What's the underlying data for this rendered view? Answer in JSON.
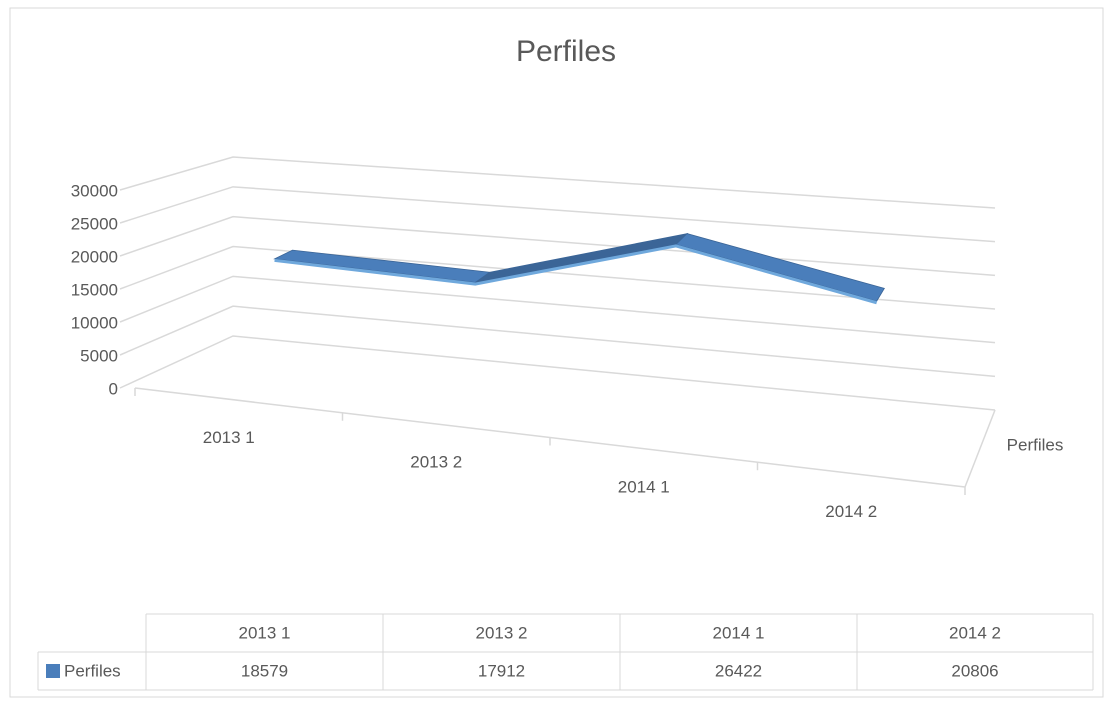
{
  "chart_data": {
    "type": "line3d",
    "title": "Perfiles",
    "categories": [
      "2013 1",
      "2013 2",
      "2014 1",
      "2014 2"
    ],
    "series": [
      {
        "name": "Perfiles",
        "color": "#4a7ebb",
        "values": [
          18579,
          17912,
          26422,
          20806
        ]
      }
    ],
    "ylim": [
      0,
      30000
    ],
    "yticks": [
      0,
      5000,
      10000,
      15000,
      20000,
      25000,
      30000
    ],
    "grid": true,
    "data_table": true
  }
}
